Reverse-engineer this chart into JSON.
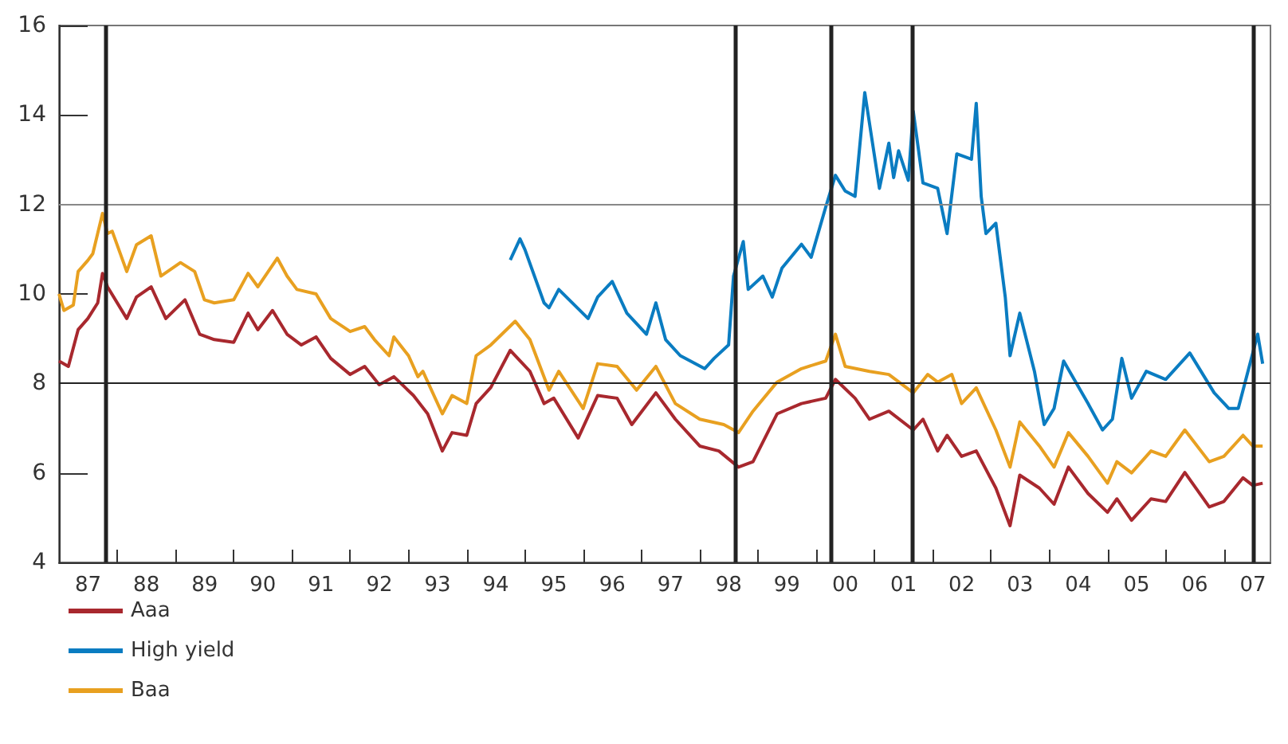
{
  "chart_data": {
    "type": "line",
    "xlim": [
      "1987-01-01",
      "2007-10-20"
    ],
    "xticks": [
      {
        "value": "1987-07-02",
        "label": "87"
      },
      {
        "value": "1988-01-01",
        "label": null
      },
      {
        "value": "1988-07-02",
        "label": "88"
      },
      {
        "value": "1989-01-01",
        "label": null
      },
      {
        "value": "1989-07-02",
        "label": "89"
      },
      {
        "value": "1990-01-01",
        "label": null
      },
      {
        "value": "1990-07-02",
        "label": "90"
      },
      {
        "value": "1991-01-01",
        "label": null
      },
      {
        "value": "1991-07-02",
        "label": "91"
      },
      {
        "value": "1992-01-01",
        "label": null
      },
      {
        "value": "1992-07-02",
        "label": "92"
      },
      {
        "value": "1993-01-01",
        "label": null
      },
      {
        "value": "1993-07-02",
        "label": "93"
      },
      {
        "value": "1994-01-01",
        "label": null
      },
      {
        "value": "1994-07-02",
        "label": "94"
      },
      {
        "value": "1995-01-01",
        "label": null
      },
      {
        "value": "1995-07-02",
        "label": "95"
      },
      {
        "value": "1996-01-01",
        "label": null
      },
      {
        "value": "1996-07-02",
        "label": "96"
      },
      {
        "value": "1997-01-01",
        "label": null
      },
      {
        "value": "1997-07-02",
        "label": "97"
      },
      {
        "value": "1998-01-01",
        "label": null
      },
      {
        "value": "1998-07-02",
        "label": "98"
      },
      {
        "value": "1999-01-01",
        "label": null
      },
      {
        "value": "1999-07-02",
        "label": "99"
      },
      {
        "value": "2000-01-01",
        "label": null
      },
      {
        "value": "2000-07-02",
        "label": "00"
      },
      {
        "value": "2001-01-01",
        "label": null
      },
      {
        "value": "2001-07-02",
        "label": "01"
      },
      {
        "value": "2002-01-01",
        "label": null
      },
      {
        "value": "2002-07-02",
        "label": "02"
      },
      {
        "value": "2003-01-01",
        "label": null
      },
      {
        "value": "2003-07-02",
        "label": "03"
      },
      {
        "value": "2004-01-01",
        "label": null
      },
      {
        "value": "2004-07-02",
        "label": "04"
      },
      {
        "value": "2005-01-01",
        "label": null
      },
      {
        "value": "2005-07-02",
        "label": "05"
      },
      {
        "value": "2006-01-01",
        "label": null
      },
      {
        "value": "2006-07-02",
        "label": "06"
      },
      {
        "value": "2007-01-01",
        "label": null
      },
      {
        "value": "2007-07-02",
        "label": "07"
      }
    ],
    "ylim": [
      4,
      16
    ],
    "yticks": [
      4,
      6,
      8,
      10,
      12,
      14,
      16
    ],
    "grid": false,
    "legend": "bottom left",
    "marker": "none",
    "line_style": "solid",
    "ref_lines": [
      {
        "axis": "y",
        "value": 8,
        "label": null,
        "color": "#222222"
      },
      {
        "axis": "y",
        "value": 12,
        "label": null,
        "color": "#888888"
      },
      {
        "axis": "x",
        "value": "1987-10-19",
        "label": null,
        "color": "#222222"
      },
      {
        "axis": "x",
        "value": "1998-08-07",
        "label": null,
        "color": "#222222"
      },
      {
        "axis": "x",
        "value": "2000-04-04",
        "label": null,
        "color": "#222222"
      },
      {
        "axis": "x",
        "value": "2001-08-25",
        "label": null,
        "color": "#222222"
      },
      {
        "axis": "x",
        "value": "2007-07-02",
        "label": null,
        "color": "#222222"
      }
    ],
    "series": [
      {
        "name": "Aaa",
        "color": "#a8282e",
        "x": [
          "1987-01",
          "1987-03",
          "1987-05",
          "1987-07",
          "1987-09",
          "1987-10",
          "1987-11",
          "1988-03",
          "1988-05",
          "1988-08",
          "1988-11",
          "1989-03",
          "1989-06",
          "1989-09",
          "1990-01",
          "1990-04",
          "1990-06",
          "1990-09",
          "1990-12",
          "1991-03",
          "1991-06",
          "1991-09",
          "1992-01",
          "1992-04",
          "1992-07",
          "1992-10",
          "1993-02",
          "1993-05",
          "1993-08",
          "1993-10",
          "1994-01",
          "1994-03",
          "1994-06",
          "1994-10",
          "1995-02",
          "1995-05",
          "1995-07",
          "1995-12",
          "1996-04",
          "1996-08",
          "1996-11",
          "1997-04",
          "1997-08",
          "1998-01",
          "1998-05",
          "1998-09",
          "1998-12",
          "1999-05",
          "1999-10",
          "2000-03",
          "2000-05",
          "2000-09",
          "2000-12",
          "2001-04",
          "2001-09",
          "2001-11",
          "2002-02",
          "2002-04",
          "2002-07",
          "2002-10",
          "2003-02",
          "2003-05",
          "2003-07",
          "2003-11",
          "2004-02",
          "2004-05",
          "2004-09",
          "2005-01",
          "2005-03",
          "2005-06",
          "2005-10",
          "2006-01",
          "2006-05",
          "2006-10",
          "2007-01",
          "2007-05",
          "2007-07",
          "2007-09"
        ],
        "values": [
          8.5,
          8.38,
          9.2,
          9.45,
          9.8,
          10.46,
          10.16,
          9.45,
          9.93,
          10.16,
          9.45,
          9.87,
          9.1,
          8.98,
          8.92,
          9.57,
          9.2,
          9.63,
          9.1,
          8.86,
          9.04,
          8.56,
          8.2,
          8.38,
          7.97,
          8.15,
          7.73,
          7.32,
          6.49,
          6.9,
          6.84,
          7.55,
          7.91,
          8.74,
          8.27,
          7.55,
          7.67,
          6.78,
          7.73,
          7.67,
          7.08,
          7.79,
          7.2,
          6.6,
          6.49,
          6.13,
          6.25,
          7.32,
          7.55,
          7.67,
          8.09,
          7.67,
          7.2,
          7.38,
          6.96,
          7.2,
          6.49,
          6.84,
          6.37,
          6.49,
          5.66,
          4.82,
          5.95,
          5.66,
          5.3,
          6.13,
          5.54,
          5.12,
          5.42,
          4.94,
          5.42,
          5.36,
          6.01,
          5.24,
          5.36,
          5.89,
          5.72,
          5.77
        ]
      },
      {
        "name": "High yield",
        "color": "#0a7cc1",
        "x": [
          "1994-10",
          "1994-12",
          "1995-01",
          "1995-05",
          "1995-06",
          "1995-08",
          "1996-02",
          "1996-04",
          "1996-07",
          "1996-10",
          "1997-02",
          "1997-04",
          "1997-06",
          "1997-09",
          "1998-02",
          "1998-04",
          "1998-07",
          "1998-08",
          "1998-10",
          "1998-11",
          "1999-02",
          "1999-04",
          "1999-06",
          "1999-10",
          "1999-12",
          "2000-03",
          "2000-05",
          "2000-07",
          "2000-09",
          "2000-11",
          "2001-02",
          "2001-04",
          "2001-05",
          "2001-06",
          "2001-08",
          "2001-09",
          "2001-11",
          "2002-02",
          "2002-04",
          "2002-06",
          "2002-09",
          "2002-10",
          "2002-11",
          "2002-12",
          "2003-02",
          "2003-04",
          "2003-05",
          "2003-07",
          "2003-10",
          "2003-12",
          "2004-02",
          "2004-04",
          "2004-09",
          "2004-12",
          "2005-02",
          "2005-04",
          "2005-06",
          "2005-09",
          "2006-01",
          "2006-06",
          "2006-11",
          "2007-02",
          "2007-04",
          "2007-08",
          "2007-09"
        ],
        "values": [
          10.76,
          11.23,
          10.99,
          9.8,
          9.69,
          10.1,
          9.45,
          9.93,
          10.28,
          9.57,
          9.1,
          9.8,
          8.98,
          8.62,
          8.33,
          8.56,
          8.86,
          10.4,
          11.17,
          10.1,
          10.4,
          9.93,
          10.58,
          11.11,
          10.82,
          11.94,
          12.65,
          12.3,
          12.18,
          14.5,
          12.36,
          13.37,
          12.6,
          13.2,
          12.54,
          14.08,
          12.48,
          12.36,
          11.35,
          13.13,
          13.01,
          14.26,
          12.18,
          11.35,
          11.58,
          9.93,
          8.62,
          9.57,
          8.27,
          7.08,
          7.44,
          8.5,
          7.55,
          6.96,
          7.2,
          8.56,
          7.67,
          8.27,
          8.09,
          8.68,
          7.79,
          7.44,
          7.44,
          9.1,
          8.44
        ]
      },
      {
        "name": "Baa",
        "color": "#e8a020",
        "x": [
          "1987-01",
          "1987-02",
          "1987-04",
          "1987-05",
          "1987-07",
          "1987-08",
          "1987-10",
          "1987-11",
          "1987-12",
          "1988-03",
          "1988-05",
          "1988-08",
          "1988-10",
          "1989-02",
          "1989-05",
          "1989-07",
          "1989-09",
          "1990-01",
          "1990-04",
          "1990-06",
          "1990-10",
          "1990-12",
          "1991-02",
          "1991-06",
          "1991-09",
          "1992-01",
          "1992-04",
          "1992-06",
          "1992-09",
          "1992-10",
          "1993-01",
          "1993-03",
          "1993-04",
          "1993-08",
          "1993-10",
          "1994-01",
          "1994-03",
          "1994-06",
          "1994-11",
          "1995-02",
          "1995-06",
          "1995-08",
          "1996-01",
          "1996-04",
          "1996-08",
          "1996-12",
          "1997-04",
          "1997-08",
          "1998-01",
          "1998-06",
          "1998-09",
          "1998-12",
          "1999-05",
          "1999-10",
          "2000-03",
          "2000-05",
          "2000-07",
          "2000-12",
          "2001-04",
          "2001-09",
          "2001-12",
          "2002-02",
          "2002-05",
          "2002-07",
          "2002-10",
          "2003-02",
          "2003-05",
          "2003-07",
          "2003-11",
          "2004-02",
          "2004-05",
          "2004-09",
          "2005-01",
          "2005-03",
          "2005-06",
          "2005-10",
          "2006-01",
          "2006-05",
          "2006-10",
          "2007-01",
          "2007-05",
          "2007-07",
          "2007-09"
        ],
        "values": [
          10.0,
          9.63,
          9.75,
          10.5,
          10.75,
          10.9,
          11.8,
          11.35,
          11.4,
          10.5,
          11.1,
          11.3,
          10.4,
          10.7,
          10.5,
          9.87,
          9.8,
          9.87,
          10.46,
          10.16,
          10.8,
          10.4,
          10.1,
          10.0,
          9.45,
          9.16,
          9.27,
          8.98,
          8.62,
          9.04,
          8.62,
          8.15,
          8.27,
          7.32,
          7.73,
          7.55,
          8.62,
          8.86,
          9.39,
          8.98,
          7.85,
          8.27,
          7.44,
          8.44,
          8.38,
          7.85,
          8.38,
          7.55,
          7.2,
          7.08,
          6.9,
          7.38,
          8.03,
          8.33,
          8.5,
          9.1,
          8.38,
          8.27,
          8.2,
          7.79,
          8.2,
          8.03,
          8.2,
          7.55,
          7.9,
          6.96,
          6.13,
          7.14,
          6.6,
          6.13,
          6.9,
          6.37,
          5.77,
          6.25,
          6.0,
          6.49,
          6.37,
          6.96,
          6.25,
          6.37,
          6.84,
          6.6,
          6.6
        ]
      }
    ]
  }
}
